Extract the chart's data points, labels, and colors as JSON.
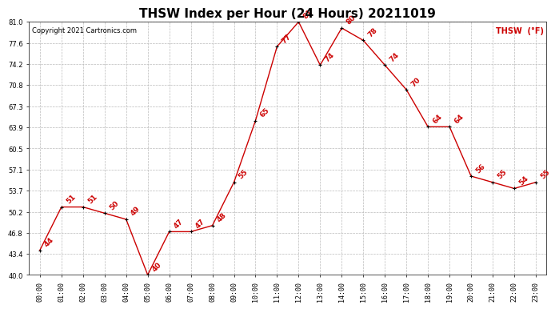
{
  "title": "THSW Index per Hour (24 Hours) 20211019",
  "copyright": "Copyright 2021 Cartronics.com",
  "legend_label": "THSW  (°F)",
  "hours": [
    "00:00",
    "01:00",
    "02:00",
    "03:00",
    "04:00",
    "05:00",
    "06:00",
    "07:00",
    "08:00",
    "09:00",
    "10:00",
    "11:00",
    "12:00",
    "13:00",
    "14:00",
    "15:00",
    "16:00",
    "17:00",
    "18:00",
    "19:00",
    "20:00",
    "21:00",
    "22:00",
    "23:00"
  ],
  "values": [
    44,
    51,
    51,
    50,
    49,
    40,
    47,
    47,
    48,
    55,
    65,
    77,
    81,
    74,
    80,
    78,
    74,
    70,
    64,
    64,
    56,
    55,
    54,
    55
  ],
  "line_color": "#cc0000",
  "marker_color": "#000000",
  "grid_color": "#bbbbbb",
  "bg_color": "#ffffff",
  "ylim": [
    40.0,
    81.0
  ],
  "yticks": [
    40.0,
    43.4,
    46.8,
    50.2,
    53.7,
    57.1,
    60.5,
    63.9,
    67.3,
    70.8,
    74.2,
    77.6,
    81.0
  ],
  "title_fontsize": 11,
  "annotation_fontsize": 6.5,
  "tick_fontsize": 6,
  "copyright_fontsize": 6,
  "legend_fontsize": 7
}
